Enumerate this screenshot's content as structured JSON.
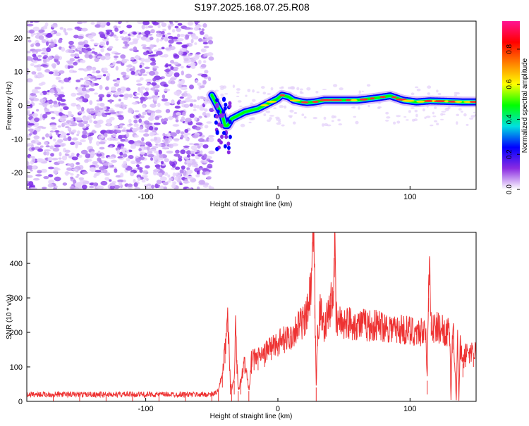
{
  "figure": {
    "title": "S197.2025.168.07.25.R08"
  },
  "chart_data": [
    {
      "type": "heatmap",
      "xlabel": "Height of straight line (km)",
      "ylabel": "Frequency (Hz)",
      "xlim": [
        -190,
        150
      ],
      "ylim": [
        -25,
        25
      ],
      "xticks": [
        -100,
        0,
        100
      ],
      "yticks": [
        -20,
        -10,
        0,
        10,
        20
      ],
      "grid": false,
      "noise_region_x": [
        -190,
        -50
      ],
      "ridge": {
        "x": [
          -50,
          -46,
          -42,
          -40,
          -38,
          -35,
          -30,
          -25,
          -20,
          -15,
          -10,
          -5,
          0,
          3,
          8,
          12,
          18,
          22,
          28,
          35,
          45,
          60,
          75,
          85,
          95,
          105,
          115,
          125,
          140,
          150
        ],
        "y": [
          3,
          0,
          -3,
          -6,
          -6,
          -4,
          -3,
          -2,
          -1.5,
          -1,
          0,
          1,
          2,
          3,
          2.5,
          1.5,
          1,
          0.8,
          1,
          1.5,
          1.5,
          1.5,
          2.2,
          2.8,
          1.5,
          1,
          1.3,
          1.2,
          1,
          1
        ]
      },
      "colorbar": {
        "label": "Normalized spectral amplitude",
        "range": [
          0,
          0.96
        ],
        "ticks": [
          0.0,
          0.2,
          0.4,
          0.6,
          0.8
        ],
        "colormap": [
          "#ffffff",
          "#8a2be2",
          "#0000ff",
          "#00e0e0",
          "#00ff00",
          "#ffff00",
          "#ff8000",
          "#ff0000",
          "#ff1493"
        ]
      }
    },
    {
      "type": "line",
      "xlabel": "Height of straight line (km)",
      "ylabel": "SNR (10 * v/v)",
      "xlim": [
        -190,
        150
      ],
      "ylim": [
        0,
        490
      ],
      "xticks": [
        -100,
        0,
        100
      ],
      "yticks": [
        0,
        100,
        200,
        300,
        400
      ],
      "grid": false,
      "line_color": "#ee3333",
      "series": [
        {
          "x": [
            -190,
            -170,
            -150,
            -130,
            -110,
            -90,
            -70,
            -50,
            -45,
            -42,
            -40,
            -38,
            -36,
            -35,
            -33,
            -32,
            -31,
            -30,
            -28,
            -25,
            -22,
            -20,
            -18,
            -15,
            -10,
            -5,
            0,
            5,
            10,
            15,
            20,
            22,
            25,
            27,
            28,
            29,
            30,
            32,
            35,
            38,
            40,
            42,
            43,
            44,
            45,
            50,
            60,
            70,
            80,
            90,
            100,
            105,
            108,
            110,
            112,
            113,
            114,
            115,
            116,
            118,
            120,
            125,
            128,
            130,
            131,
            132,
            133,
            135,
            136,
            137,
            138,
            140,
            142,
            145,
            148,
            150
          ],
          "y": [
            20,
            20,
            20,
            20,
            20,
            20,
            20,
            20,
            30,
            80,
            150,
            240,
            60,
            40,
            60,
            240,
            120,
            30,
            60,
            120,
            30,
            120,
            130,
            130,
            140,
            160,
            170,
            180,
            190,
            220,
            230,
            250,
            320,
            490,
            280,
            40,
            200,
            260,
            220,
            250,
            280,
            320,
            460,
            240,
            230,
            230,
            225,
            220,
            220,
            210,
            205,
            205,
            200,
            210,
            210,
            60,
            300,
            400,
            230,
            210,
            215,
            210,
            200,
            200,
            0,
            180,
            190,
            0,
            190,
            0,
            160,
            110,
            140,
            150,
            140,
            150
          ]
        }
      ]
    }
  ]
}
